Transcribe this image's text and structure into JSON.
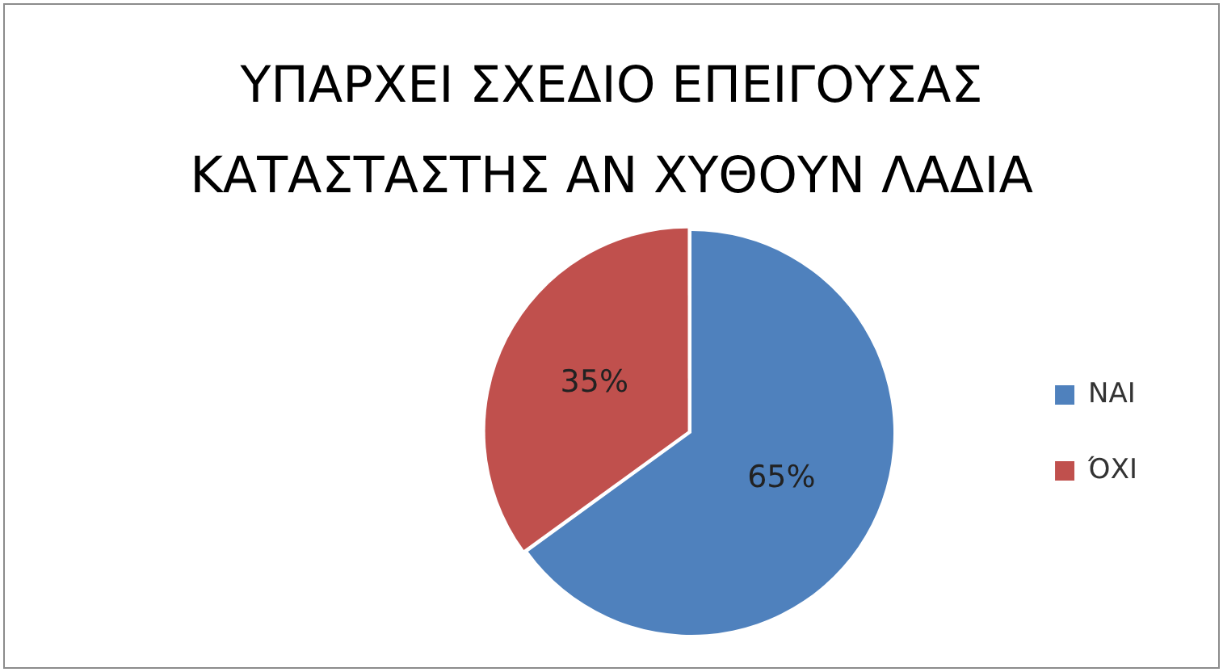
{
  "chart_data": {
    "type": "pie",
    "title": "ΥΠΑΡΧΕΙ ΣΧΕΔΙΟ ΕΠΕΙΓΟΥΣΑΣ ΚΑΤΑΣΤΑΣΤΗΣ ΑΝ ΧΥΘΟΥΝ ΛΑΔΙΑ",
    "categories": [
      "ΝΑΙ",
      "ΌΧΙ"
    ],
    "values": [
      65,
      35
    ],
    "colors": [
      "#4f81bd",
      "#c0504d"
    ],
    "value_labels": [
      "65%",
      "35%"
    ],
    "legend": "right"
  }
}
